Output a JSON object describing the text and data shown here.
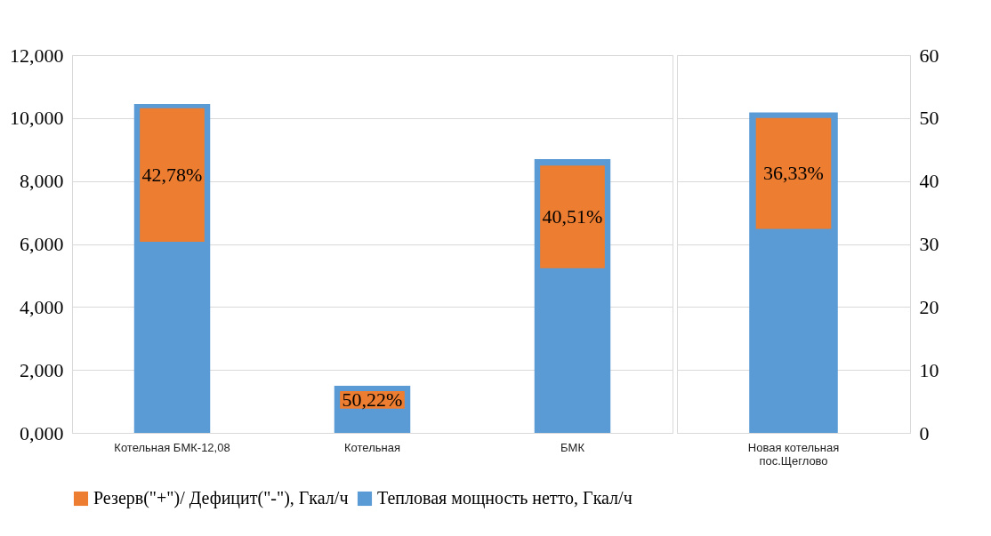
{
  "chart_data": [
    {
      "type": "bar",
      "categories": [
        "Котельная БМК-12,08",
        "Котельная",
        "БМК"
      ],
      "ylim": [
        0,
        12
      ],
      "yticks": [
        {
          "value": 0,
          "label": "0,000"
        },
        {
          "value": 2,
          "label": "2,000"
        },
        {
          "value": 4,
          "label": "4,000"
        },
        {
          "value": 6,
          "label": "6,000"
        },
        {
          "value": 8,
          "label": "8,000"
        },
        {
          "value": 10,
          "label": "10,000"
        },
        {
          "value": 12,
          "label": "12,000"
        }
      ],
      "grid": "y",
      "legend": "bottom",
      "series": [
        {
          "name": "Тепловая мощность нетто, Гкал/ч",
          "color": "#5b9bd5",
          "values": [
            10.45,
            1.5,
            8.7
          ]
        },
        {
          "name": "Резерв(\"+\")/ Дефицит(\"-\"), Гкал/ч",
          "color": "#ed7d31",
          "base": [
            6.07,
            0.77,
            5.23
          ],
          "values": [
            4.24,
            0.56,
            3.26
          ]
        }
      ],
      "annotations": [
        "42,78%",
        "50,22%",
        "40,51%"
      ]
    },
    {
      "type": "bar",
      "categories": [
        "Новая котельная\nпос.Щеглово"
      ],
      "y2lim": [
        0,
        60
      ],
      "y2ticks": [
        0,
        10,
        20,
        30,
        40,
        50,
        60
      ],
      "grid": "y",
      "series": [
        {
          "color": "#5b9bd5",
          "axis": "y2",
          "values": [
            50.9
          ]
        },
        {
          "color": "#ed7d31",
          "axis": "y2",
          "base": [
            32.4
          ],
          "values": [
            17.6
          ]
        }
      ],
      "annotations": [
        "36,33%"
      ]
    }
  ]
}
